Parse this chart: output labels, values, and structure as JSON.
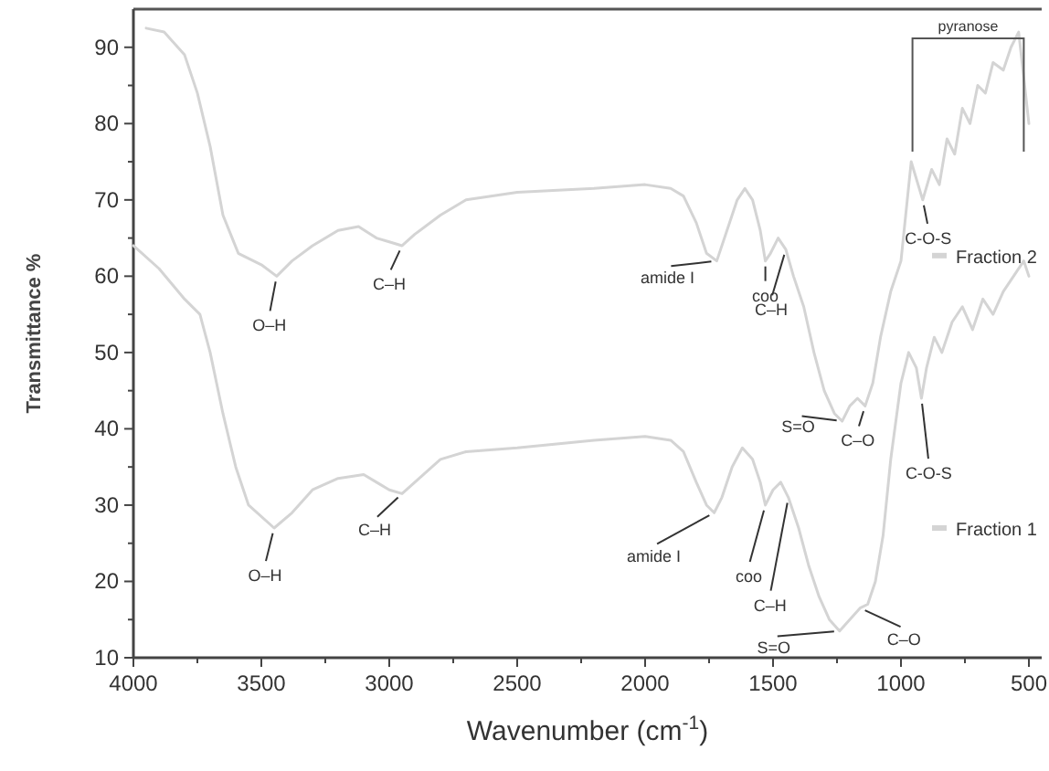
{
  "chart_data": {
    "type": "line",
    "xlabel": "Wavenumber (cm$^{-1}$)",
    "ylabel": "Transmittance %",
    "xlim": [
      4000,
      450
    ],
    "ylim": [
      10,
      95
    ],
    "xticks": [
      4000,
      {
        "value": 3750,
        "label": null
      },
      3500,
      {
        "value": 3250,
        "label": null
      },
      3000,
      {
        "value": 2750,
        "label": null
      },
      2500,
      {
        "value": 2250,
        "label": null
      },
      2000,
      {
        "value": 1750,
        "label": null
      },
      1500,
      {
        "value": 1250,
        "label": null
      },
      1000,
      {
        "value": 750,
        "label": null
      },
      500
    ],
    "yticks": [
      10,
      {
        "value": 15,
        "label": null
      },
      20,
      {
        "value": 25,
        "label": null
      },
      30,
      {
        "value": 35,
        "label": null
      },
      40,
      {
        "value": 45,
        "label": null
      },
      50,
      {
        "value": 55,
        "label": null
      },
      60,
      {
        "value": 65,
        "label": null
      },
      70,
      {
        "value": 75,
        "label": null
      },
      80,
      {
        "value": 85,
        "label": null
      },
      90
    ],
    "grid": false,
    "legend": "right",
    "line_style": "solid",
    "marker": "none",
    "series": [
      {
        "name": "Fraction 2",
        "color": "#d4d4d4",
        "x": [
          3950,
          3880,
          3800,
          3750,
          3700,
          3650,
          3590,
          3500,
          3440,
          3380,
          3300,
          3200,
          3120,
          3050,
          3000,
          2950,
          2900,
          2800,
          2700,
          2500,
          2200,
          2000,
          1900,
          1850,
          1800,
          1760,
          1720,
          1680,
          1640,
          1610,
          1580,
          1550,
          1530,
          1510,
          1480,
          1450,
          1420,
          1380,
          1340,
          1300,
          1260,
          1230,
          1200,
          1170,
          1140,
          1110,
          1080,
          1040,
          1000,
          960,
          915,
          880,
          850,
          820,
          790,
          760,
          730,
          700,
          670,
          640,
          600,
          570,
          540,
          520,
          500
        ],
        "values": [
          92.5,
          92,
          89,
          84,
          77,
          68,
          63,
          61.5,
          60,
          62,
          64,
          66,
          66.5,
          65,
          64.5,
          64,
          65.5,
          68,
          70,
          71,
          71.5,
          72,
          71.5,
          70.5,
          67,
          63,
          62,
          66,
          70,
          71.5,
          70,
          66,
          62,
          63,
          65,
          63.5,
          60,
          56,
          50,
          45,
          42,
          41,
          43,
          44,
          43,
          46,
          52,
          58,
          62,
          75,
          70,
          74,
          72,
          78,
          76,
          82,
          80,
          85,
          84,
          88,
          87,
          90,
          92,
          86,
          80
        ]
      },
      {
        "name": "Fraction 1",
        "color": "#d4d4d4",
        "x": [
          4000,
          3900,
          3800,
          3740,
          3700,
          3650,
          3600,
          3550,
          3450,
          3380,
          3300,
          3200,
          3100,
          3050,
          3000,
          2950,
          2900,
          2800,
          2700,
          2500,
          2200,
          2000,
          1900,
          1850,
          1800,
          1760,
          1730,
          1700,
          1660,
          1620,
          1580,
          1550,
          1530,
          1500,
          1470,
          1440,
          1400,
          1360,
          1320,
          1280,
          1240,
          1200,
          1160,
          1130,
          1100,
          1070,
          1040,
          1000,
          970,
          940,
          920,
          900,
          870,
          840,
          800,
          760,
          720,
          680,
          640,
          600,
          560,
          520,
          500
        ],
        "values": [
          64,
          61,
          57,
          55,
          50,
          42,
          35,
          30,
          27,
          29,
          32,
          33.5,
          34,
          33,
          32,
          31.5,
          33,
          36,
          37,
          37.5,
          38.5,
          39,
          38.5,
          37,
          33,
          30,
          29,
          31,
          35,
          37.5,
          36,
          33,
          30,
          32,
          33,
          31,
          27,
          22,
          18,
          15,
          13.5,
          15,
          16.5,
          17,
          20,
          26,
          36,
          46,
          50,
          48,
          44,
          48,
          52,
          50,
          54,
          56,
          53,
          57,
          55,
          58,
          60,
          62,
          60
        ]
      }
    ],
    "annotations": [
      {
        "text": "O–H",
        "x": 3440,
        "y": 60
      },
      {
        "text": "C–H",
        "x": 2950,
        "y": 64
      },
      {
        "text": "amide I",
        "x": 1720,
        "y": 62
      },
      {
        "text": "coo",
        "x": 1530,
        "y": 62
      },
      {
        "text": "C–H",
        "x": 1450,
        "y": 63.5
      },
      {
        "text": "S=O",
        "x": 1230,
        "y": 41
      },
      {
        "text": "C–O",
        "x": 1140,
        "y": 43
      },
      {
        "text": "C-O-S",
        "x": 915,
        "y": 70
      },
      "pyranose",
      {
        "text": "O–H",
        "x": 3450,
        "y": 27
      },
      {
        "text": "C–H",
        "x": 2950,
        "y": 31.5
      },
      {
        "text": "amide I",
        "x": 1730,
        "y": 29
      },
      {
        "text": "coo",
        "x": 1530,
        "y": 30
      },
      {
        "text": "C–H",
        "x": 1440,
        "y": 31
      },
      {
        "text": "S=O",
        "x": 1240,
        "y": 13.5
      },
      {
        "text": "C–O",
        "x": 1160,
        "y": 16.5
      },
      {
        "text": "C-O-S",
        "x": 920,
        "y": 44
      }
    ]
  }
}
